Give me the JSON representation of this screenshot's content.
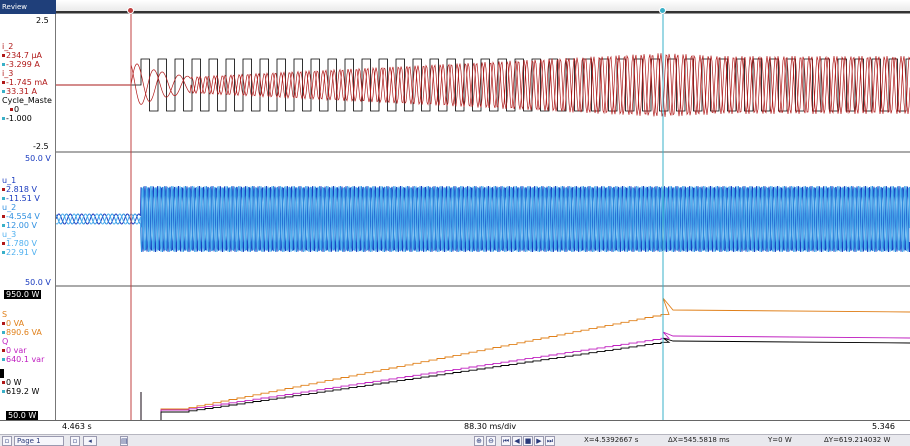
{
  "window": {
    "title_tag": "Review"
  },
  "panel1": {
    "ymax_label": "2.5",
    "ymin_label": "-2.5",
    "signals": [
      {
        "name": "i_2",
        "value_a": "234.7 µA",
        "value_b": "-3.299  A",
        "color": "#b01818"
      },
      {
        "name": "i_3",
        "value_a": "-1.745 mA",
        "value_b": "33.31  A",
        "color": "#b01818"
      },
      {
        "name": "Cycle_Maste",
        "value_a": "0",
        "value_b": "-1.000",
        "color": "#000000"
      }
    ]
  },
  "panel2": {
    "ymax_label": "50.0  V",
    "ymin_label": "50.0  V",
    "signals": [
      {
        "name": "u_1",
        "value_a": "2.818  V",
        "value_b": "-11.51  V",
        "color": "#1a3bbf"
      },
      {
        "name": "u_2",
        "value_a": "-4.554  V",
        "value_b": "12.00  V",
        "color": "#2e8fe0"
      },
      {
        "name": "u_3",
        "value_a": "1.780  V",
        "value_b": "22.91  V",
        "color": "#4fb0ef"
      }
    ]
  },
  "panel3": {
    "ymax_label": "950.0  W",
    "ymin_label": "50.0  W",
    "signals": [
      {
        "name": "S",
        "value_a": "0  VA",
        "value_b": "890.6  VA",
        "color": "#e0801a"
      },
      {
        "name": "Q",
        "value_a": "0  var",
        "value_b": "640.1  var",
        "color": "#c020c0"
      },
      {
        "name": "P",
        "value_a": "0  W",
        "value_b": "619.2  W",
        "color": "#000000"
      }
    ]
  },
  "x_axis": {
    "start": "4.463  s",
    "per_div": "88.30 ms/div",
    "end": "5.346"
  },
  "status": {
    "page_label": "Page 1",
    "x_readout": "X=4.5392667 s",
    "dx_readout": "ΔX=545.5818 ms",
    "y_readout": "Y=0 W",
    "dy_readout": "ΔY=619.214032 W"
  },
  "colors": {
    "cursor1": "#c04040",
    "cursor2": "#3ab0c8",
    "i_2": "#b01818",
    "cycle": "#000000",
    "u_1": "#1a3bbf",
    "u_2": "#2e8fe0",
    "u_3": "#4fb0ef",
    "S": "#e0801a",
    "Q": "#c020c0",
    "P": "#000000"
  }
}
